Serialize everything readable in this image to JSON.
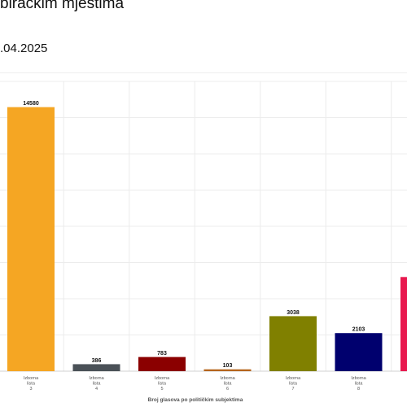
{
  "header": {
    "title": "biračkim mjestima",
    "date": ".04.2025"
  },
  "chart_data": {
    "type": "bar",
    "title": "",
    "xlabel": "Broj glasova po političkim subjektima",
    "ylabel": "",
    "ylim": [
      0,
      16000
    ],
    "grid": true,
    "categories": [
      [
        "Izborna",
        "lista",
        "3"
      ],
      [
        "Izborna",
        "lista",
        "4"
      ],
      [
        "Izborna",
        "lista",
        "5"
      ],
      [
        "Izborna",
        "lista",
        "6"
      ],
      [
        "Izborna",
        "lista",
        "7"
      ],
      [
        "Izborna",
        "lista",
        "8"
      ],
      [
        "",
        "",
        ""
      ]
    ],
    "values": [
      14580,
      386,
      783,
      103,
      3038,
      2103,
      5200
    ],
    "value_labels": [
      "14580",
      "386",
      "783",
      "103",
      "3038",
      "2103",
      ""
    ],
    "colors": [
      "#f5a623",
      "#4a5157",
      "#8b0000",
      "#b5651d",
      "#808000",
      "#00006e",
      "#e8194f"
    ]
  }
}
